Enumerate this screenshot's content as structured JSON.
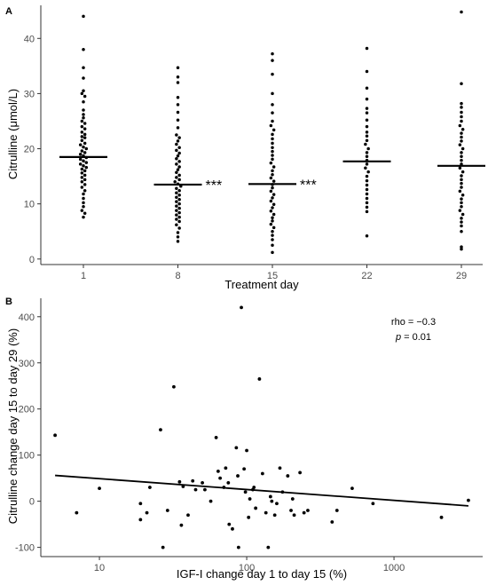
{
  "chart_data": [
    {
      "panel": "A",
      "type": "scatter",
      "subtype": "dot-plot",
      "xlabel": "Treatment day",
      "ylabel": "Citrulline (μmol/L)",
      "categories": [
        "1",
        "8",
        "15",
        "22",
        "29"
      ],
      "yticks": [
        0,
        10,
        20,
        30,
        40
      ],
      "ylim": [
        -1,
        46
      ],
      "grid": false,
      "medians": [
        18.5,
        13.5,
        13.6,
        17.7,
        16.9
      ],
      "significance": [
        "",
        "***",
        "***",
        "",
        "*"
      ],
      "groups": [
        {
          "name": "1",
          "values": [
            44.0,
            38.0,
            34.7,
            32.8,
            30.5,
            30.0,
            29.5,
            28.5,
            27.0,
            26.2,
            25.6,
            25.0,
            24.6,
            24.0,
            23.6,
            23.0,
            22.6,
            22.2,
            22.0,
            21.5,
            21.0,
            20.7,
            20.3,
            20.0,
            19.6,
            19.3,
            19.0,
            18.7,
            18.4,
            18.1,
            17.8,
            17.5,
            17.2,
            16.9,
            16.6,
            16.3,
            16.0,
            15.6,
            15.2,
            14.8,
            14.4,
            14.0,
            13.5,
            13.0,
            12.4,
            11.8,
            11.0,
            10.2,
            9.5,
            8.8,
            8.3,
            7.6
          ]
        },
        {
          "name": "8",
          "values": [
            34.7,
            33.0,
            32.0,
            29.3,
            28.0,
            26.6,
            25.2,
            23.8,
            22.5,
            22.0,
            21.4,
            20.8,
            20.2,
            19.7,
            19.2,
            18.7,
            18.2,
            17.7,
            17.2,
            16.7,
            16.2,
            15.7,
            15.2,
            14.8,
            14.4,
            14.0,
            13.6,
            13.2,
            12.8,
            12.4,
            12.0,
            11.6,
            11.2,
            10.8,
            10.4,
            10.0,
            9.6,
            9.2,
            8.8,
            8.4,
            8.0,
            7.6,
            7.2,
            6.8,
            6.2,
            5.6,
            4.8,
            4.0,
            3.2
          ]
        },
        {
          "name": "15",
          "values": [
            37.2,
            36.0,
            33.5,
            30.0,
            28.0,
            26.5,
            25.0,
            24.2,
            23.4,
            22.6,
            21.8,
            21.0,
            20.2,
            19.5,
            18.8,
            18.1,
            17.4,
            16.7,
            16.0,
            15.3,
            14.7,
            14.1,
            13.5,
            12.9,
            12.3,
            11.7,
            11.1,
            10.5,
            9.9,
            9.3,
            8.7,
            8.1,
            7.5,
            6.9,
            6.3,
            5.7,
            5.0,
            4.3,
            3.5,
            2.5,
            1.2
          ]
        },
        {
          "name": "22",
          "values": [
            38.2,
            34.0,
            31.0,
            29.0,
            27.3,
            26.5,
            25.2,
            24.0,
            23.0,
            22.3,
            21.5,
            20.8,
            20.0,
            19.3,
            18.6,
            17.9,
            17.2,
            16.5,
            15.8,
            15.0,
            14.2,
            13.4,
            12.6,
            11.8,
            11.0,
            10.2,
            9.4,
            8.6,
            4.2
          ]
        },
        {
          "name": "29",
          "values": [
            44.8,
            31.8,
            28.2,
            27.5,
            26.6,
            25.8,
            25.0,
            24.2,
            23.5,
            22.8,
            22.1,
            21.4,
            20.7,
            20.0,
            19.3,
            18.6,
            17.9,
            17.2,
            16.5,
            15.8,
            15.1,
            14.4,
            13.7,
            13.0,
            12.3,
            11.6,
            10.9,
            10.2,
            9.5,
            8.8,
            8.1,
            7.4,
            6.7,
            6.0,
            5.0,
            2.2,
            1.8
          ]
        }
      ]
    },
    {
      "panel": "B",
      "type": "scatter",
      "xlabel": "IGF-I change day 1 to day 15 (%)",
      "ylabel": "Citrulline change day 15 to day 29 (%)",
      "xscale": "log",
      "xlim": [
        4,
        4000
      ],
      "ylim": [
        -120,
        440
      ],
      "xticks": [
        "10",
        "100",
        "1000"
      ],
      "yticks": [
        -100,
        0,
        100,
        200,
        300,
        400
      ],
      "grid": false,
      "annotation": {
        "rho_text": "rho = −0.3",
        "p_italic": "p",
        "p_rest": " = 0.01"
      },
      "regression": {
        "x": [
          5,
          3200
        ],
        "y": [
          56,
          -10
        ]
      },
      "points": [
        {
          "x": 5,
          "y": 143
        },
        {
          "x": 7,
          "y": -25
        },
        {
          "x": 10,
          "y": 28
        },
        {
          "x": 19,
          "y": -5
        },
        {
          "x": 19,
          "y": -40
        },
        {
          "x": 21,
          "y": -25
        },
        {
          "x": 22,
          "y": 30
        },
        {
          "x": 26,
          "y": 155
        },
        {
          "x": 27,
          "y": -100
        },
        {
          "x": 29,
          "y": -20
        },
        {
          "x": 32,
          "y": 248
        },
        {
          "x": 35,
          "y": 42
        },
        {
          "x": 36,
          "y": -52
        },
        {
          "x": 37,
          "y": 32
        },
        {
          "x": 40,
          "y": -30
        },
        {
          "x": 43,
          "y": 44
        },
        {
          "x": 45,
          "y": 25
        },
        {
          "x": 50,
          "y": 40
        },
        {
          "x": 52,
          "y": 25
        },
        {
          "x": 57,
          "y": 0
        },
        {
          "x": 62,
          "y": 138
        },
        {
          "x": 64,
          "y": 65
        },
        {
          "x": 66,
          "y": 50
        },
        {
          "x": 70,
          "y": 30
        },
        {
          "x": 72,
          "y": 72
        },
        {
          "x": 75,
          "y": 40
        },
        {
          "x": 76,
          "y": -50
        },
        {
          "x": 80,
          "y": -60
        },
        {
          "x": 85,
          "y": 116
        },
        {
          "x": 87,
          "y": 55
        },
        {
          "x": 88,
          "y": -100
        },
        {
          "x": 92,
          "y": 420
        },
        {
          "x": 96,
          "y": 70
        },
        {
          "x": 98,
          "y": 20
        },
        {
          "x": 100,
          "y": 110
        },
        {
          "x": 103,
          "y": -35
        },
        {
          "x": 105,
          "y": 5
        },
        {
          "x": 110,
          "y": 25
        },
        {
          "x": 112,
          "y": 30
        },
        {
          "x": 115,
          "y": -15
        },
        {
          "x": 122,
          "y": 265
        },
        {
          "x": 128,
          "y": 60
        },
        {
          "x": 135,
          "y": -25
        },
        {
          "x": 140,
          "y": -100
        },
        {
          "x": 145,
          "y": 10
        },
        {
          "x": 148,
          "y": 0
        },
        {
          "x": 155,
          "y": -30
        },
        {
          "x": 160,
          "y": -5
        },
        {
          "x": 168,
          "y": 72
        },
        {
          "x": 175,
          "y": 20
        },
        {
          "x": 190,
          "y": 55
        },
        {
          "x": 200,
          "y": -20
        },
        {
          "x": 205,
          "y": 5
        },
        {
          "x": 210,
          "y": -30
        },
        {
          "x": 230,
          "y": 62
        },
        {
          "x": 245,
          "y": -25
        },
        {
          "x": 260,
          "y": -20
        },
        {
          "x": 380,
          "y": -45
        },
        {
          "x": 410,
          "y": -20
        },
        {
          "x": 520,
          "y": 28
        },
        {
          "x": 720,
          "y": -5
        },
        {
          "x": 2100,
          "y": -35
        },
        {
          "x": 3200,
          "y": 2
        }
      ]
    }
  ]
}
